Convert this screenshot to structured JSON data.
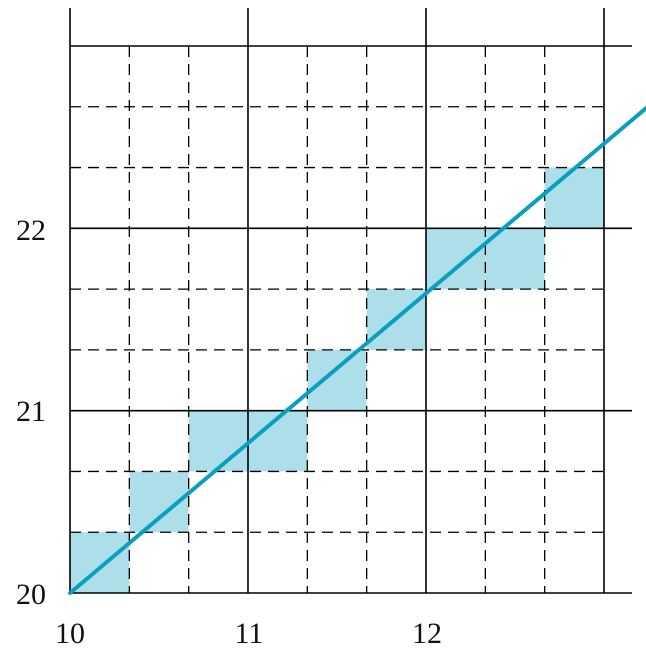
{
  "chart_data": {
    "type": "diagram",
    "x_ticks": [
      "10",
      "11",
      "12"
    ],
    "y_ticks": [
      "20",
      "21",
      "22"
    ],
    "x_range": [
      10,
      13
    ],
    "y_range": [
      20,
      23
    ],
    "grid": {
      "major_step": 1,
      "minor_step": 0.3333333333
    },
    "line": {
      "from": [
        10,
        20
      ],
      "to": [
        13.25,
        22.67
      ],
      "color": "#0a9fbf"
    },
    "highlighted_cells": [
      {
        "x": 10.0,
        "y": 20.0
      },
      {
        "x": 10.3333333333,
        "y": 20.3333333333
      },
      {
        "x": 10.6666666667,
        "y": 20.6666666667
      },
      {
        "x": 11.0,
        "y": 20.6666666667
      },
      {
        "x": 11.3333333333,
        "y": 21.0
      },
      {
        "x": 11.6666666667,
        "y": 21.3333333333
      },
      {
        "x": 12.0,
        "y": 21.6666666667
      },
      {
        "x": 12.3333333333,
        "y": 21.6666666667
      },
      {
        "x": 12.6666666667,
        "y": 22.0
      }
    ],
    "highlight_color": "#addfeb",
    "grid_color": "#000000"
  }
}
